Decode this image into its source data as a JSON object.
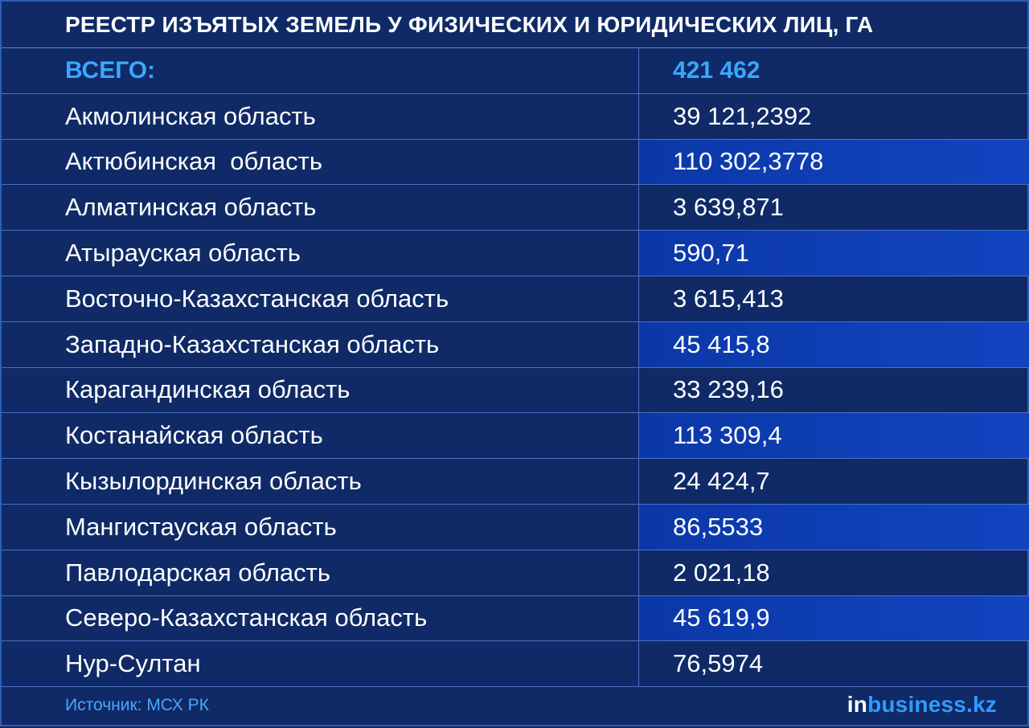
{
  "title": "РЕЕСТР ИЗЪЯТЫХ ЗЕМЕЛЬ У ФИЗИЧЕСКИХ И ЮРИДИЧЕСКИХ ЛИЦ, ГА",
  "total": {
    "label": "ВСЕГО:",
    "value": "421 462"
  },
  "rows": [
    {
      "name": "Акмолинская область",
      "value": "39 121,2392",
      "highlight": false
    },
    {
      "name": "Актюбинская  область",
      "value": "110 302,3778",
      "highlight": true
    },
    {
      "name": "Алматинская область",
      "value": "3 639,871",
      "highlight": false
    },
    {
      "name": "Атырауская область",
      "value": "590,71",
      "highlight": true
    },
    {
      "name": "Восточно-Казахстанская область",
      "value": "3 615,413",
      "highlight": false
    },
    {
      "name": "Западно-Казахстанская область",
      "value": "45 415,8",
      "highlight": true
    },
    {
      "name": "Карагандинская область",
      "value": "33 239,16",
      "highlight": false
    },
    {
      "name": "Костанайская область",
      "value": "113 309,4",
      "highlight": true
    },
    {
      "name": "Кызылординская область",
      "value": "24 424,7",
      "highlight": false
    },
    {
      "name": "Мангистауская область",
      "value": "86,5533",
      "highlight": true
    },
    {
      "name": "Павлодарская область",
      "value": "2 021,18",
      "highlight": false
    },
    {
      "name": "Северо-Казахстанская область",
      "value": "45 619,9",
      "highlight": true
    },
    {
      "name": "Нур-Султан",
      "value": "76,5974",
      "highlight": false
    }
  ],
  "footer": {
    "source": "Источник: МСХ РК",
    "brand_prefix": "in",
    "brand_suffix": "business.kz"
  },
  "colors": {
    "background": "#0f2a66",
    "highlight": "#1244c0",
    "accent": "#3aa7ff",
    "text": "#ffffff"
  },
  "chart_data": {
    "type": "table",
    "title": "РЕЕСТР ИЗЪЯТЫХ ЗЕМЕЛЬ У ФИЗИЧЕСКИХ И ЮРИДИЧЕСКИХ ЛИЦ, ГА",
    "total": 421462,
    "categories": [
      "Акмолинская область",
      "Актюбинская  область",
      "Алматинская область",
      "Атырауская область",
      "Восточно-Казахстанская область",
      "Западно-Казахстанская область",
      "Карагандинская область",
      "Костанайская область",
      "Кызылординская область",
      "Мангистауская область",
      "Павлодарская область",
      "Северо-Казахстанская область",
      "Нур-Султан"
    ],
    "values": [
      39121.2392,
      110302.3778,
      3639.871,
      590.71,
      3615.413,
      45415.8,
      33239.16,
      113309.4,
      24424.7,
      86.5533,
      2021.18,
      45619.9,
      76.5974
    ]
  }
}
